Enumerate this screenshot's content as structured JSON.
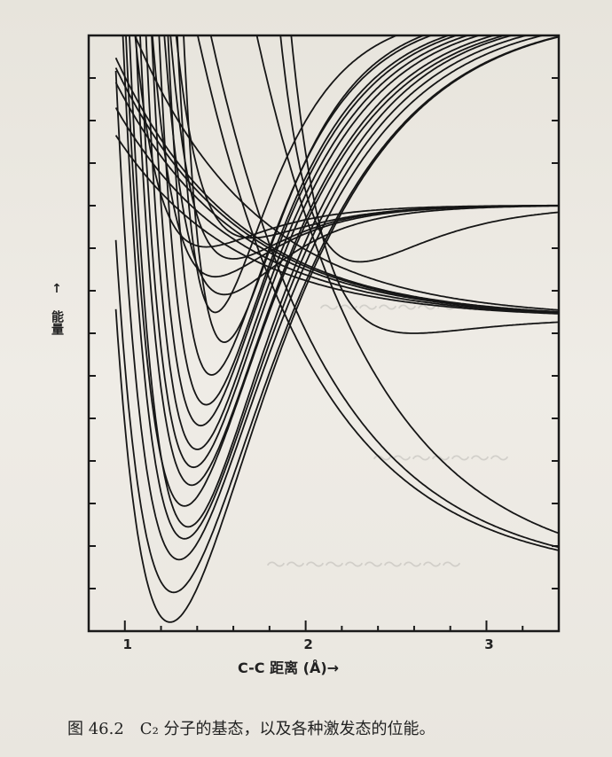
{
  "caption": "图 46.2　C₂ 分子的基态，以及各种激发态的位能。",
  "chart_data": {
    "type": "line",
    "title": "",
    "xlabel": "C-C 距离 (Å)→",
    "ylabel": "↑ 能量",
    "xlim": [
      0.8,
      3.4
    ],
    "ylim": [
      0,
      20
    ],
    "x_ticks": [
      1,
      2,
      3
    ],
    "x_tick_labels": [
      "1",
      "2",
      "3"
    ],
    "y_tick_labels": [],
    "grid": false,
    "legend": "none",
    "series_description": "Many unlabeled potential energy curves; each defined by repulsive wall, well minimum and dissociation limit (energy units arbitrary, axis unlabeled).",
    "series": [
      {
        "re": 1.25,
        "de": 20.8,
        "emin": 0.3,
        "a": 1.8
      },
      {
        "re": 1.27,
        "de": 20.8,
        "emin": 1.3,
        "a": 1.8
      },
      {
        "re": 1.3,
        "de": 20.8,
        "emin": 2.4,
        "a": 1.9
      },
      {
        "re": 1.33,
        "de": 20.8,
        "emin": 3.1,
        "a": 2.0
      },
      {
        "re": 1.35,
        "de": 20.8,
        "emin": 3.5,
        "a": 2.1
      },
      {
        "re": 1.33,
        "de": 20.8,
        "emin": 4.2,
        "a": 2.1
      },
      {
        "re": 1.37,
        "de": 20.8,
        "emin": 4.9,
        "a": 2.2
      },
      {
        "re": 1.38,
        "de": 20.8,
        "emin": 5.5,
        "a": 2.3
      },
      {
        "re": 1.4,
        "de": 20.8,
        "emin": 6.1,
        "a": 2.4
      },
      {
        "re": 1.42,
        "de": 20.8,
        "emin": 6.9,
        "a": 2.5
      },
      {
        "re": 1.45,
        "de": 20.8,
        "emin": 7.6,
        "a": 2.6
      },
      {
        "re": 1.48,
        "de": 20.8,
        "emin": 8.6,
        "a": 2.8
      },
      {
        "re": 1.55,
        "de": 20.8,
        "emin": 9.7,
        "a": 3.0
      },
      {
        "re": 1.5,
        "de": 20.8,
        "emin": 10.7,
        "a": 3.2
      },
      {
        "re": 1.55,
        "de": 14.3,
        "emin": 11.3,
        "a": 3.0
      },
      {
        "re": 1.5,
        "de": 14.3,
        "emin": 11.9,
        "a": 3.0
      },
      {
        "re": 1.6,
        "de": 14.3,
        "emin": 12.5,
        "a": 3.2
      },
      {
        "re": 1.45,
        "de": 14.3,
        "emin": 12.9,
        "a": 3.0
      },
      {
        "re": 1.7,
        "de": 14.3,
        "emin": 13.2,
        "a": 3.0
      },
      {
        "re": 1.55,
        "de": 10.5,
        "emin": 13.0,
        "a": 3.0
      },
      {
        "re": 1.62,
        "de": 10.5,
        "emin": 13.4,
        "a": 3.0
      },
      {
        "re": 1.5,
        "de": 10.5,
        "emin": 13.6,
        "a": 3.2
      },
      {
        "re": 1.58,
        "de": 10.5,
        "emin": 13.9,
        "a": 2.8
      },
      {
        "re": 1.48,
        "de": 10.5,
        "emin": 14.3,
        "a": 3.0
      },
      {
        "re": 1.6,
        "de": 10.5,
        "emin": 14.7,
        "a": 2.8
      },
      {
        "re": 1.7,
        "de": 1.8,
        "emin": 14.8,
        "a": 2.6
      },
      {
        "re": 1.9,
        "de": 1.8,
        "emin": 15.9,
        "a": 2.4
      },
      {
        "re": 1.55,
        "de": 1.8,
        "emin": 16.4,
        "a": 2.8
      },
      {
        "re": 2.3,
        "de": 14.3,
        "emin": 12.4,
        "a": 2.5
      },
      {
        "re": 2.6,
        "de": 10.5,
        "emin": 10.0,
        "a": 2.5
      }
    ]
  }
}
